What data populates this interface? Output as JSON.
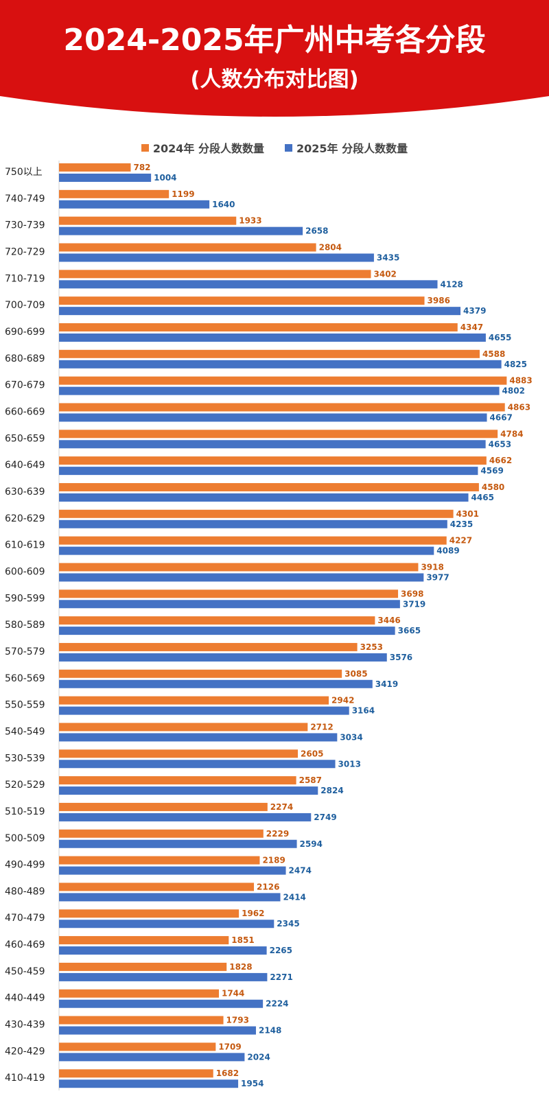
{
  "colors": {
    "banner": "#d81010",
    "series_2024": "#ed7d31",
    "series_2025": "#4472c4",
    "label_2024": "#c55a11",
    "label_2025": "#1f5f9e"
  },
  "chart_data": {
    "type": "bar",
    "orientation": "horizontal",
    "title": "2024-2025年广州中考各分段",
    "subtitle": "(人数分布对比图)",
    "legend_position": "top",
    "categories": [
      "750以上",
      "740-749",
      "730-739",
      "720-729",
      "710-719",
      "700-709",
      "690-699",
      "680-689",
      "670-679",
      "660-669",
      "650-659",
      "640-649",
      "630-639",
      "620-629",
      "610-619",
      "600-609",
      "590-599",
      "580-589",
      "570-579",
      "560-569",
      "550-559",
      "540-549",
      "530-539",
      "520-529",
      "510-519",
      "500-509",
      "490-499",
      "480-489",
      "470-479",
      "460-469",
      "450-459",
      "440-449",
      "430-439",
      "420-429",
      "410-419"
    ],
    "series": [
      {
        "name": "2024年 分段人数数量",
        "values": [
          782,
          1199,
          1933,
          2804,
          3402,
          3986,
          4347,
          4588,
          4883,
          4863,
          4784,
          4662,
          4580,
          4301,
          4227,
          3918,
          3698,
          3446,
          3253,
          3085,
          2942,
          2712,
          2605,
          2587,
          2274,
          2229,
          2189,
          2126,
          1962,
          1851,
          1828,
          1744,
          1793,
          1709,
          1682
        ]
      },
      {
        "name": "2025年 分段人数数量",
        "values": [
          1004,
          1640,
          2658,
          3435,
          4128,
          4379,
          4655,
          4825,
          4802,
          4667,
          4653,
          4569,
          4465,
          4235,
          4089,
          3977,
          3719,
          3665,
          3576,
          3419,
          3164,
          3034,
          3013,
          2824,
          2749,
          2594,
          2474,
          2414,
          2345,
          2265,
          2271,
          2224,
          2148,
          2024,
          1954
        ]
      }
    ],
    "xlim": [
      0,
      5000
    ],
    "grid": false
  }
}
